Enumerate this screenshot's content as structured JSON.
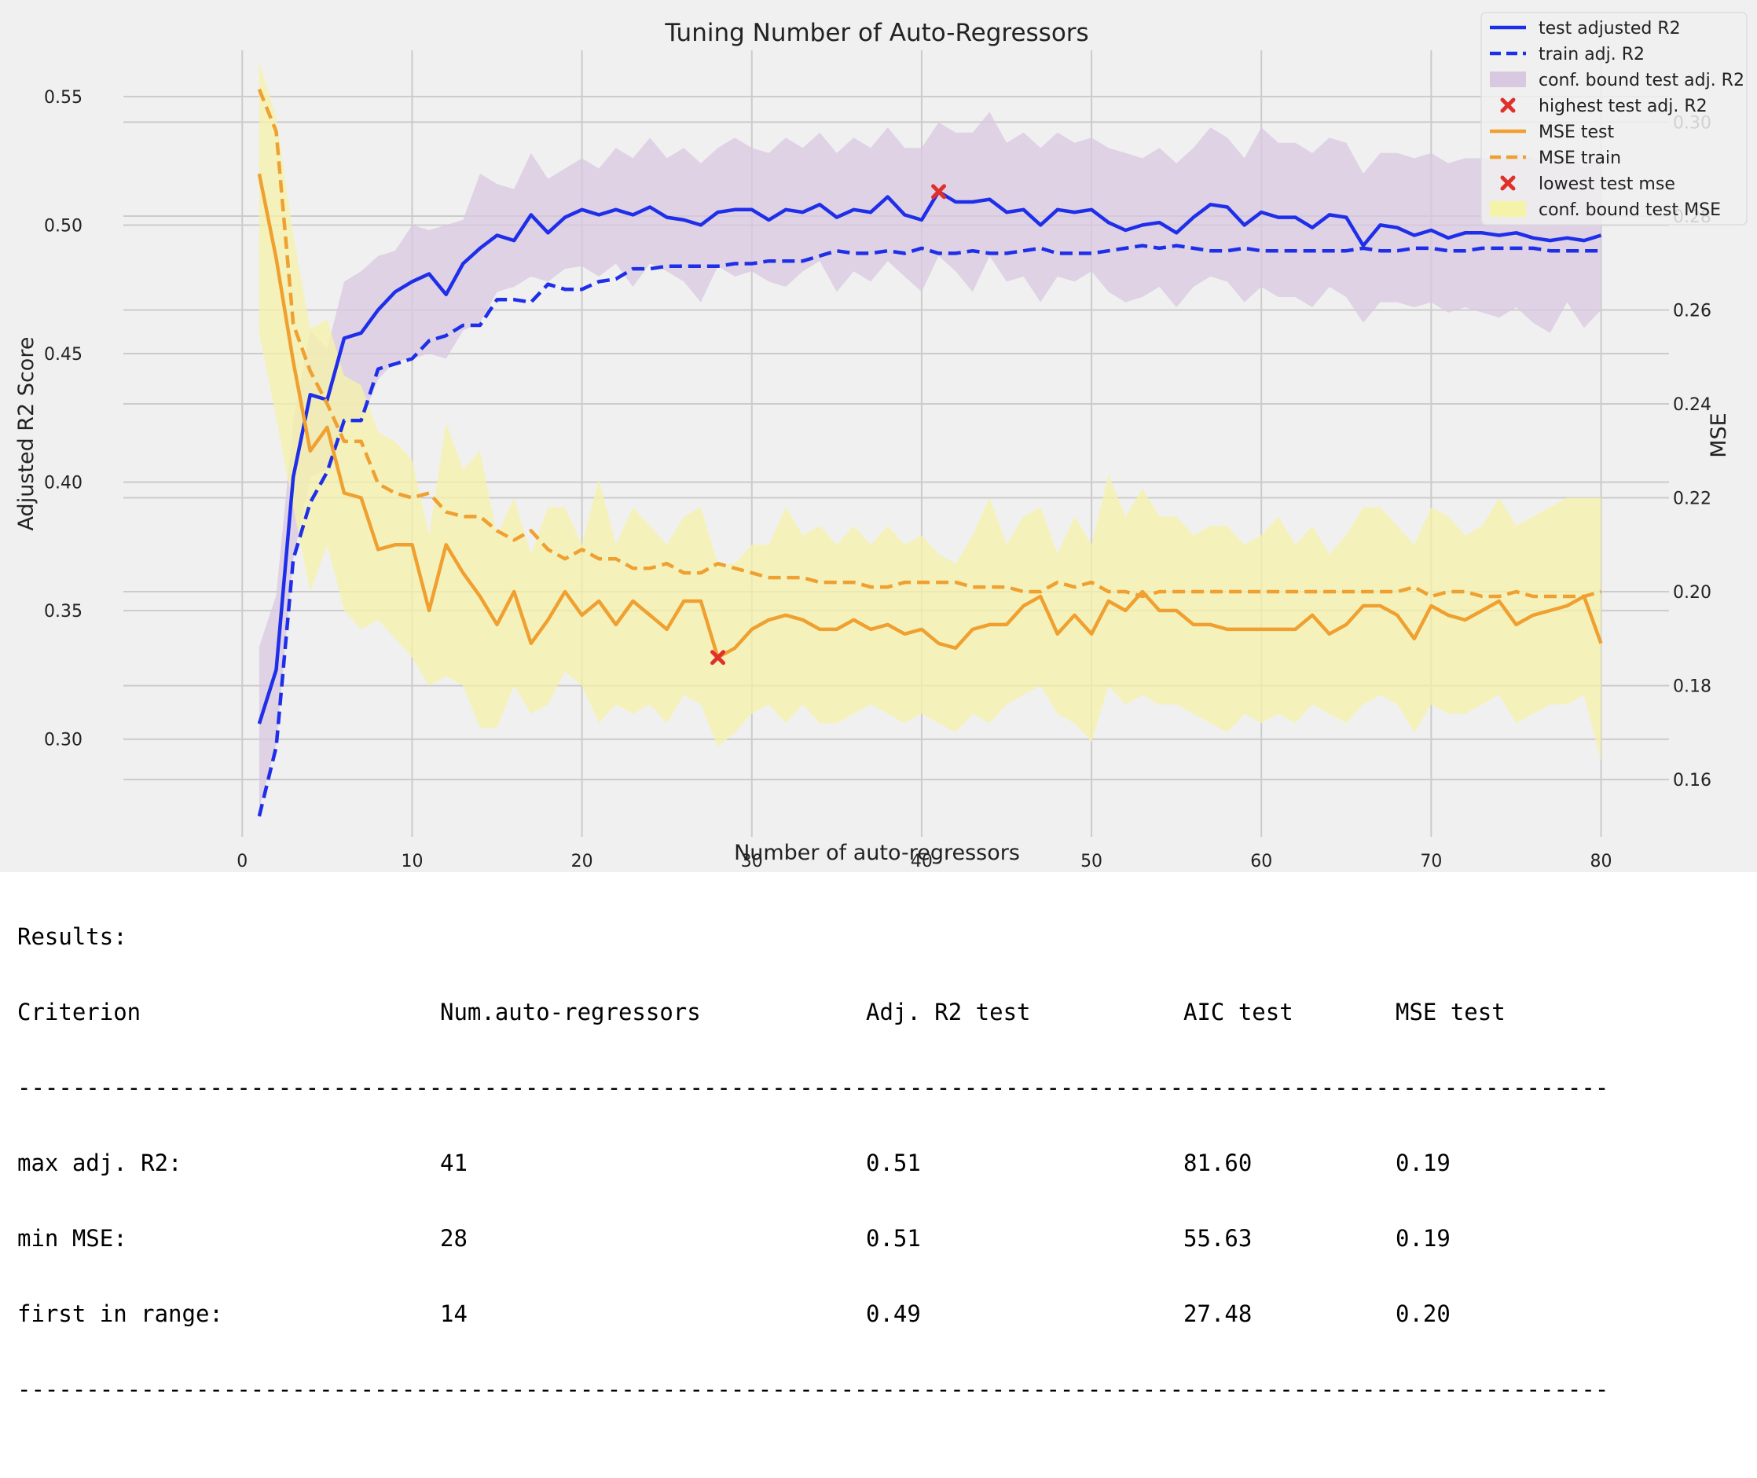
{
  "chart_data": {
    "type": "line",
    "title": "Tuning Number of Auto-Regressors",
    "xlabel": "Number of auto-regressors",
    "ylabel": "Adjusted R2 Score",
    "y2label": "MSE",
    "xlim": [
      -7,
      84
    ],
    "ylim": [
      0.262,
      0.568
    ],
    "y2lim": [
      0.1478,
      0.3153
    ],
    "xticks": [
      0,
      10,
      20,
      30,
      40,
      50,
      60,
      70,
      80
    ],
    "yticks": [
      0.3,
      0.35,
      0.4,
      0.45,
      0.5,
      0.55
    ],
    "y2ticks": [
      0.16,
      0.18,
      0.2,
      0.22,
      0.24,
      0.26,
      0.28,
      0.3
    ],
    "grid": true,
    "legend_position": "top-right",
    "x": [
      1,
      2,
      3,
      4,
      5,
      6,
      7,
      8,
      9,
      10,
      11,
      12,
      13,
      14,
      15,
      16,
      17,
      18,
      19,
      20,
      21,
      22,
      23,
      24,
      25,
      26,
      27,
      28,
      29,
      30,
      31,
      32,
      33,
      34,
      35,
      36,
      37,
      38,
      39,
      40,
      41,
      42,
      43,
      44,
      45,
      46,
      47,
      48,
      49,
      50,
      51,
      52,
      53,
      54,
      55,
      56,
      57,
      58,
      59,
      60,
      61,
      62,
      63,
      64,
      65,
      66,
      67,
      68,
      69,
      70,
      71,
      72,
      73,
      74,
      75,
      76,
      77,
      78,
      79,
      80
    ],
    "series": [
      {
        "name": "test adjusted R2",
        "axis": "left",
        "style": "solid",
        "color": "#1f2ee8",
        "values": [
          0.306,
          0.327,
          0.402,
          0.434,
          0.432,
          0.456,
          0.458,
          0.467,
          0.474,
          0.478,
          0.481,
          0.473,
          0.485,
          0.491,
          0.496,
          0.494,
          0.504,
          0.497,
          0.503,
          0.506,
          0.504,
          0.506,
          0.504,
          0.507,
          0.503,
          0.502,
          0.5,
          0.505,
          0.506,
          0.506,
          0.502,
          0.506,
          0.505,
          0.508,
          0.503,
          0.506,
          0.505,
          0.511,
          0.504,
          0.502,
          0.513,
          0.509,
          0.509,
          0.51,
          0.505,
          0.506,
          0.5,
          0.506,
          0.505,
          0.506,
          0.501,
          0.498,
          0.5,
          0.501,
          0.497,
          0.503,
          0.508,
          0.507,
          0.5,
          0.505,
          0.503,
          0.503,
          0.499,
          0.504,
          0.503,
          0.492,
          0.5,
          0.499,
          0.496,
          0.498,
          0.495,
          0.497,
          0.497,
          0.496,
          0.497,
          0.495,
          0.494,
          0.495,
          0.494,
          0.496
        ]
      },
      {
        "name": "train adj. R2",
        "axis": "left",
        "style": "dashed",
        "color": "#1f2ee8",
        "values": [
          0.27,
          0.297,
          0.37,
          0.392,
          0.404,
          0.424,
          0.424,
          0.444,
          0.446,
          0.448,
          0.455,
          0.457,
          0.461,
          0.461,
          0.471,
          0.471,
          0.47,
          0.477,
          0.475,
          0.475,
          0.478,
          0.479,
          0.483,
          0.483,
          0.484,
          0.484,
          0.484,
          0.484,
          0.485,
          0.485,
          0.486,
          0.486,
          0.486,
          0.488,
          0.49,
          0.489,
          0.489,
          0.49,
          0.489,
          0.491,
          0.489,
          0.489,
          0.49,
          0.489,
          0.489,
          0.49,
          0.491,
          0.489,
          0.489,
          0.489,
          0.49,
          0.491,
          0.492,
          0.491,
          0.492,
          0.491,
          0.49,
          0.49,
          0.491,
          0.49,
          0.49,
          0.49,
          0.49,
          0.49,
          0.49,
          0.491,
          0.49,
          0.49,
          0.491,
          0.491,
          0.49,
          0.49,
          0.491,
          0.491,
          0.491,
          0.491,
          0.49,
          0.49,
          0.49,
          0.49
        ]
      },
      {
        "name": "conf. bound test adj. R2",
        "axis": "left",
        "type": "band",
        "color": "#d8c8e0",
        "lower": [
          0.273,
          0.298,
          0.37,
          0.402,
          0.405,
          0.423,
          0.424,
          0.44,
          0.447,
          0.448,
          0.45,
          0.448,
          0.459,
          0.462,
          0.474,
          0.476,
          0.48,
          0.478,
          0.483,
          0.484,
          0.48,
          0.485,
          0.476,
          0.485,
          0.482,
          0.478,
          0.47,
          0.484,
          0.48,
          0.482,
          0.478,
          0.476,
          0.482,
          0.486,
          0.474,
          0.482,
          0.478,
          0.486,
          0.48,
          0.474,
          0.488,
          0.482,
          0.474,
          0.488,
          0.478,
          0.48,
          0.47,
          0.48,
          0.478,
          0.482,
          0.474,
          0.47,
          0.472,
          0.476,
          0.468,
          0.476,
          0.48,
          0.478,
          0.47,
          0.476,
          0.472,
          0.472,
          0.468,
          0.476,
          0.472,
          0.462,
          0.47,
          0.47,
          0.468,
          0.47,
          0.466,
          0.468,
          0.466,
          0.464,
          0.468,
          0.462,
          0.458,
          0.47,
          0.46,
          0.467
        ],
        "upper": [
          0.336,
          0.356,
          0.424,
          0.459,
          0.452,
          0.478,
          0.482,
          0.488,
          0.49,
          0.5,
          0.498,
          0.5,
          0.502,
          0.52,
          0.516,
          0.514,
          0.528,
          0.518,
          0.522,
          0.526,
          0.522,
          0.53,
          0.526,
          0.534,
          0.526,
          0.53,
          0.524,
          0.53,
          0.534,
          0.53,
          0.528,
          0.534,
          0.53,
          0.536,
          0.528,
          0.534,
          0.53,
          0.538,
          0.53,
          0.53,
          0.54,
          0.536,
          0.536,
          0.544,
          0.532,
          0.536,
          0.53,
          0.536,
          0.532,
          0.534,
          0.53,
          0.528,
          0.526,
          0.53,
          0.524,
          0.53,
          0.538,
          0.534,
          0.526,
          0.538,
          0.532,
          0.532,
          0.528,
          0.534,
          0.532,
          0.52,
          0.528,
          0.528,
          0.526,
          0.528,
          0.524,
          0.526,
          0.526,
          0.526,
          0.528,
          0.526,
          0.524,
          0.528,
          0.522,
          0.526
        ]
      },
      {
        "name": "MSE test",
        "axis": "right",
        "style": "solid",
        "color": "#f0a030",
        "values": [
          0.289,
          0.271,
          0.249,
          0.23,
          0.235,
          0.221,
          0.22,
          0.209,
          0.21,
          0.21,
          0.196,
          0.21,
          0.204,
          0.199,
          0.193,
          0.2,
          0.189,
          0.194,
          0.2,
          0.195,
          0.198,
          0.193,
          0.198,
          0.195,
          0.192,
          0.198,
          0.198,
          0.186,
          0.188,
          0.192,
          0.194,
          0.195,
          0.194,
          0.192,
          0.192,
          0.194,
          0.192,
          0.193,
          0.191,
          0.192,
          0.189,
          0.188,
          0.192,
          0.193,
          0.193,
          0.197,
          0.199,
          0.191,
          0.195,
          0.191,
          0.198,
          0.196,
          0.2,
          0.196,
          0.196,
          0.193,
          0.193,
          0.192,
          0.192,
          0.192,
          0.192,
          0.192,
          0.195,
          0.191,
          0.193,
          0.197,
          0.197,
          0.195,
          0.19,
          0.197,
          0.195,
          0.194,
          0.196,
          0.198,
          0.193,
          0.195,
          0.196,
          0.197,
          0.199,
          0.189
        ]
      },
      {
        "name": "MSE train",
        "axis": "right",
        "style": "dashed",
        "color": "#f0a030",
        "values": [
          0.307,
          0.298,
          0.257,
          0.247,
          0.24,
          0.232,
          0.232,
          0.223,
          0.221,
          0.22,
          0.221,
          0.217,
          0.216,
          0.216,
          0.213,
          0.211,
          0.213,
          0.209,
          0.207,
          0.209,
          0.207,
          0.207,
          0.205,
          0.205,
          0.206,
          0.204,
          0.204,
          0.206,
          0.205,
          0.204,
          0.203,
          0.203,
          0.203,
          0.202,
          0.202,
          0.202,
          0.201,
          0.201,
          0.202,
          0.202,
          0.202,
          0.202,
          0.201,
          0.201,
          0.201,
          0.2,
          0.2,
          0.202,
          0.201,
          0.202,
          0.2,
          0.2,
          0.199,
          0.2,
          0.2,
          0.2,
          0.2,
          0.2,
          0.2,
          0.2,
          0.2,
          0.2,
          0.2,
          0.2,
          0.2,
          0.2,
          0.2,
          0.2,
          0.201,
          0.199,
          0.2,
          0.2,
          0.199,
          0.199,
          0.2,
          0.199,
          0.199,
          0.199,
          0.199,
          0.2
        ]
      },
      {
        "name": "conf. bound test MSE",
        "axis": "right",
        "type": "band",
        "color": "#f5f3a8",
        "lower": [
          0.255,
          0.237,
          0.218,
          0.2,
          0.21,
          0.196,
          0.192,
          0.194,
          0.19,
          0.186,
          0.18,
          0.182,
          0.18,
          0.171,
          0.171,
          0.18,
          0.174,
          0.176,
          0.183,
          0.18,
          0.172,
          0.176,
          0.174,
          0.176,
          0.172,
          0.178,
          0.176,
          0.167,
          0.17,
          0.174,
          0.176,
          0.172,
          0.176,
          0.172,
          0.172,
          0.174,
          0.176,
          0.174,
          0.172,
          0.174,
          0.172,
          0.17,
          0.174,
          0.172,
          0.176,
          0.178,
          0.18,
          0.174,
          0.172,
          0.168,
          0.18,
          0.176,
          0.178,
          0.176,
          0.176,
          0.174,
          0.172,
          0.17,
          0.174,
          0.172,
          0.174,
          0.172,
          0.176,
          0.174,
          0.172,
          0.176,
          0.178,
          0.176,
          0.17,
          0.176,
          0.174,
          0.174,
          0.176,
          0.178,
          0.172,
          0.174,
          0.176,
          0.176,
          0.178,
          0.164
        ],
        "upper": [
          0.313,
          0.301,
          0.276,
          0.256,
          0.258,
          0.246,
          0.244,
          0.234,
          0.232,
          0.228,
          0.212,
          0.236,
          0.226,
          0.23,
          0.212,
          0.22,
          0.208,
          0.218,
          0.218,
          0.21,
          0.224,
          0.21,
          0.218,
          0.214,
          0.21,
          0.216,
          0.218,
          0.206,
          0.206,
          0.21,
          0.21,
          0.218,
          0.212,
          0.214,
          0.21,
          0.214,
          0.21,
          0.214,
          0.21,
          0.212,
          0.208,
          0.206,
          0.212,
          0.22,
          0.21,
          0.216,
          0.218,
          0.208,
          0.216,
          0.21,
          0.225,
          0.216,
          0.222,
          0.216,
          0.216,
          0.212,
          0.214,
          0.214,
          0.21,
          0.212,
          0.216,
          0.21,
          0.214,
          0.208,
          0.212,
          0.218,
          0.218,
          0.214,
          0.21,
          0.218,
          0.216,
          0.212,
          0.214,
          0.22,
          0.214,
          0.216,
          0.218,
          0.22,
          0.22,
          0.22
        ]
      }
    ],
    "markers": [
      {
        "name": "highest test adj. R2",
        "axis": "left",
        "x": 41,
        "y": 0.513,
        "marker": "x",
        "color": "#e0302a"
      },
      {
        "name": "lowest test mse",
        "axis": "right",
        "x": 28,
        "y": 0.186,
        "marker": "x",
        "color": "#e0302a"
      }
    ]
  },
  "results": {
    "heading": "Results:",
    "columns": [
      "Criterion",
      "Num.auto-regressors",
      "Adj. R2 test",
      "AIC test",
      "MSE test"
    ],
    "rule": "---------------------------------------------------------------------------------------------------------------------------------",
    "rows": [
      [
        "max adj. R2:",
        "41",
        "0.51",
        "81.60",
        "0.19"
      ],
      [
        "min MSE:",
        "28",
        "0.51",
        "55.63",
        "0.19"
      ],
      [
        "first in range:",
        "14",
        "0.49",
        "27.48",
        "0.20"
      ]
    ]
  }
}
